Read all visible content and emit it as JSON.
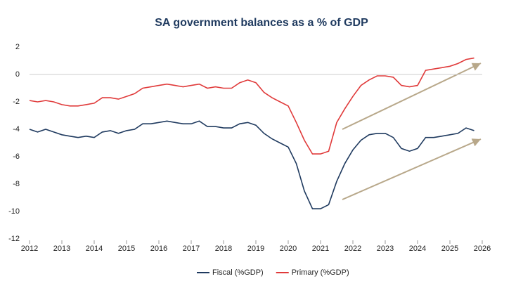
{
  "chart_data": {
    "type": "line",
    "title": "SA government balances as a % of GDP",
    "x": [
      2012,
      2012.25,
      2012.5,
      2012.75,
      2013,
      2013.25,
      2013.5,
      2013.75,
      2014,
      2014.25,
      2014.5,
      2014.75,
      2015,
      2015.25,
      2015.5,
      2015.75,
      2016,
      2016.25,
      2016.5,
      2016.75,
      2017,
      2017.25,
      2017.5,
      2017.75,
      2018,
      2018.25,
      2018.5,
      2018.75,
      2019,
      2019.25,
      2019.5,
      2019.75,
      2020,
      2020.25,
      2020.5,
      2020.75,
      2021,
      2021.25,
      2021.5,
      2021.75,
      2022,
      2022.25,
      2022.5,
      2022.75,
      2023,
      2023.25,
      2023.5,
      2023.75,
      2024,
      2024.25,
      2024.5,
      2024.75,
      2025,
      2025.25,
      2025.5,
      2025.75
    ],
    "series": [
      {
        "name": "Fiscal (%GDP)",
        "color": "#1f3a5f",
        "values": [
          -4.0,
          -4.2,
          -4.0,
          -4.2,
          -4.4,
          -4.5,
          -4.6,
          -4.5,
          -4.6,
          -4.2,
          -4.1,
          -4.3,
          -4.1,
          -4.0,
          -3.6,
          -3.6,
          -3.5,
          -3.4,
          -3.5,
          -3.6,
          -3.6,
          -3.4,
          -3.8,
          -3.8,
          -3.9,
          -3.9,
          -3.6,
          -3.5,
          -3.7,
          -4.3,
          -4.7,
          -5.0,
          -5.3,
          -6.5,
          -8.5,
          -9.8,
          -9.8,
          -9.5,
          -7.8,
          -6.5,
          -5.5,
          -4.8,
          -4.4,
          -4.3,
          -4.3,
          -4.6,
          -5.4,
          -5.6,
          -5.4,
          -4.6,
          -4.6,
          -4.5,
          -4.4,
          -4.3,
          -3.9,
          -4.1
        ]
      },
      {
        "name": "Primary (%GDP)",
        "color": "#e03a3a",
        "values": [
          -1.9,
          -2.0,
          -1.9,
          -2.0,
          -2.2,
          -2.3,
          -2.3,
          -2.2,
          -2.1,
          -1.7,
          -1.7,
          -1.8,
          -1.6,
          -1.4,
          -1.0,
          -0.9,
          -0.8,
          -0.7,
          -0.8,
          -0.9,
          -0.8,
          -0.7,
          -1.0,
          -0.9,
          -1.0,
          -1.0,
          -0.6,
          -0.4,
          -0.6,
          -1.3,
          -1.7,
          -2.0,
          -2.3,
          -3.5,
          -4.8,
          -5.8,
          -5.8,
          -5.6,
          -3.5,
          -2.5,
          -1.6,
          -0.8,
          -0.4,
          -0.1,
          -0.1,
          -0.2,
          -0.8,
          -0.9,
          -0.8,
          0.3,
          0.4,
          0.5,
          0.6,
          0.8,
          1.1,
          1.2
        ]
      }
    ],
    "xlim": [
      2012,
      2026
    ],
    "xticks": [
      2012,
      2013,
      2014,
      2015,
      2016,
      2017,
      2018,
      2019,
      2020,
      2021,
      2022,
      2023,
      2024,
      2025,
      2026
    ],
    "ylim": [
      -12,
      2
    ],
    "yticks": [
      -12,
      -10,
      -8,
      -6,
      -4,
      -2,
      0,
      2
    ],
    "grid": false,
    "legend": "bottom"
  }
}
